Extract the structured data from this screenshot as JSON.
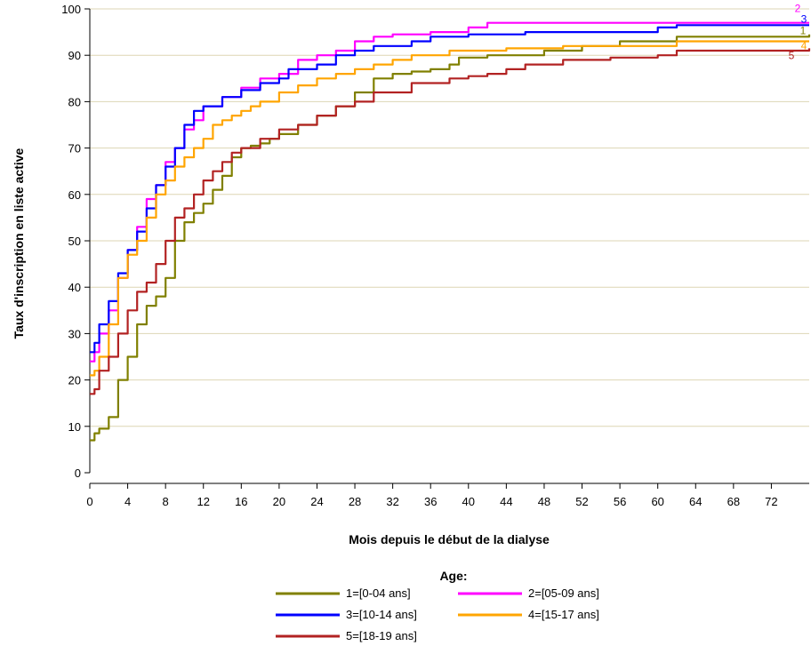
{
  "chart_data": {
    "type": "line",
    "step": true,
    "xlabel": "Mois depuis le début de la dialyse",
    "ylabel": "Taux d'inscription en liste active",
    "xlim": [
      0,
      76
    ],
    "ylim": [
      0,
      100
    ],
    "xticks": [
      "0",
      "4",
      "8",
      "12",
      "16",
      "20",
      "24",
      "28",
      "32",
      "36",
      "40",
      "44",
      "48",
      "52",
      "56",
      "60",
      "64",
      "68",
      "72"
    ],
    "yticks": [
      "0",
      "10",
      "20",
      "30",
      "40",
      "50",
      "60",
      "70",
      "80",
      "90",
      "100"
    ],
    "grid": "horizontal",
    "legend": {
      "title": "Age:",
      "placement": "bottom"
    },
    "series": [
      {
        "name": "1=[0-04 ans]",
        "end_label": "1",
        "color": "#808000",
        "points": [
          [
            0,
            7
          ],
          [
            0.5,
            8.5
          ],
          [
            1,
            9.5
          ],
          [
            2,
            12
          ],
          [
            3,
            20
          ],
          [
            4,
            25
          ],
          [
            5,
            32
          ],
          [
            6,
            36
          ],
          [
            7,
            38
          ],
          [
            8,
            42
          ],
          [
            9,
            50
          ],
          [
            10,
            54
          ],
          [
            11,
            56
          ],
          [
            12,
            58
          ],
          [
            13,
            61
          ],
          [
            14,
            64
          ],
          [
            15,
            68
          ],
          [
            16,
            70
          ],
          [
            17,
            70.5
          ],
          [
            18,
            71
          ],
          [
            19,
            72
          ],
          [
            20,
            73
          ],
          [
            22,
            75
          ],
          [
            24,
            77
          ],
          [
            26,
            79
          ],
          [
            28,
            82
          ],
          [
            30,
            85
          ],
          [
            32,
            86
          ],
          [
            34,
            86.5
          ],
          [
            36,
            87
          ],
          [
            38,
            88
          ],
          [
            39,
            89.5
          ],
          [
            42,
            90
          ],
          [
            48,
            91
          ],
          [
            52,
            92
          ],
          [
            56,
            93
          ],
          [
            62,
            94
          ],
          [
            70,
            94
          ],
          [
            76,
            94.5
          ]
        ]
      },
      {
        "name": "2=[05-09 ans]",
        "end_label": "2",
        "color": "#ff00ff",
        "points": [
          [
            0,
            24
          ],
          [
            0.5,
            26
          ],
          [
            1,
            30
          ],
          [
            2,
            35
          ],
          [
            3,
            42
          ],
          [
            4,
            48
          ],
          [
            5,
            53
          ],
          [
            6,
            59
          ],
          [
            7,
            62
          ],
          [
            8,
            67
          ],
          [
            9,
            70
          ],
          [
            10,
            74
          ],
          [
            11,
            76
          ],
          [
            12,
            79
          ],
          [
            14,
            81
          ],
          [
            16,
            83
          ],
          [
            18,
            85
          ],
          [
            20,
            86
          ],
          [
            22,
            89
          ],
          [
            24,
            90
          ],
          [
            26,
            91
          ],
          [
            28,
            93
          ],
          [
            30,
            94
          ],
          [
            32,
            94.5
          ],
          [
            36,
            95
          ],
          [
            40,
            96
          ],
          [
            42,
            97
          ],
          [
            44,
            97
          ],
          [
            60,
            97
          ],
          [
            76,
            97
          ]
        ]
      },
      {
        "name": "3=[10-14 ans]",
        "end_label": "3",
        "color": "#0000ff",
        "points": [
          [
            0,
            26
          ],
          [
            0.5,
            28
          ],
          [
            1,
            32
          ],
          [
            2,
            37
          ],
          [
            3,
            43
          ],
          [
            4,
            48
          ],
          [
            5,
            52
          ],
          [
            6,
            57
          ],
          [
            7,
            62
          ],
          [
            8,
            66
          ],
          [
            9,
            70
          ],
          [
            10,
            75
          ],
          [
            11,
            78
          ],
          [
            12,
            79
          ],
          [
            14,
            81
          ],
          [
            16,
            82.5
          ],
          [
            18,
            84
          ],
          [
            20,
            85
          ],
          [
            21,
            87
          ],
          [
            24,
            88
          ],
          [
            26,
            90
          ],
          [
            28,
            91
          ],
          [
            30,
            92
          ],
          [
            34,
            93
          ],
          [
            36,
            94
          ],
          [
            40,
            94.5
          ],
          [
            46,
            95
          ],
          [
            60,
            96
          ],
          [
            62,
            96.5
          ],
          [
            76,
            96.5
          ]
        ]
      },
      {
        "name": "4=[15-17 ans]",
        "end_label": "4",
        "color": "#ffa500",
        "points": [
          [
            0,
            21
          ],
          [
            0.5,
            22
          ],
          [
            1,
            25
          ],
          [
            2,
            32
          ],
          [
            3,
            42
          ],
          [
            4,
            47
          ],
          [
            5,
            50
          ],
          [
            6,
            55
          ],
          [
            7,
            60
          ],
          [
            8,
            63
          ],
          [
            9,
            66
          ],
          [
            10,
            68
          ],
          [
            11,
            70
          ],
          [
            12,
            72
          ],
          [
            13,
            75
          ],
          [
            14,
            76
          ],
          [
            15,
            77
          ],
          [
            16,
            78
          ],
          [
            17,
            79
          ],
          [
            18,
            80
          ],
          [
            20,
            82
          ],
          [
            22,
            83.5
          ],
          [
            24,
            85
          ],
          [
            26,
            86
          ],
          [
            28,
            87
          ],
          [
            30,
            88
          ],
          [
            32,
            89
          ],
          [
            34,
            90
          ],
          [
            38,
            91
          ],
          [
            44,
            91.5
          ],
          [
            50,
            92
          ],
          [
            56,
            92
          ],
          [
            62,
            93
          ],
          [
            76,
            93
          ]
        ]
      },
      {
        "name": "5=[18-19 ans]",
        "end_label": "5",
        "color": "#b22222",
        "points": [
          [
            0,
            17
          ],
          [
            0.5,
            18
          ],
          [
            1,
            22
          ],
          [
            2,
            25
          ],
          [
            3,
            30
          ],
          [
            4,
            35
          ],
          [
            5,
            39
          ],
          [
            6,
            41
          ],
          [
            7,
            45
          ],
          [
            8,
            50
          ],
          [
            9,
            55
          ],
          [
            10,
            57
          ],
          [
            11,
            60
          ],
          [
            12,
            63
          ],
          [
            13,
            65
          ],
          [
            14,
            67
          ],
          [
            15,
            69
          ],
          [
            16,
            70
          ],
          [
            18,
            72
          ],
          [
            20,
            74
          ],
          [
            22,
            75
          ],
          [
            24,
            77
          ],
          [
            26,
            79
          ],
          [
            28,
            80
          ],
          [
            30,
            82
          ],
          [
            34,
            84
          ],
          [
            38,
            85
          ],
          [
            40,
            85.5
          ],
          [
            42,
            86
          ],
          [
            44,
            87
          ],
          [
            46,
            88
          ],
          [
            50,
            89
          ],
          [
            55,
            89.5
          ],
          [
            60,
            90
          ],
          [
            62,
            91
          ],
          [
            76,
            91.5
          ]
        ]
      }
    ]
  }
}
